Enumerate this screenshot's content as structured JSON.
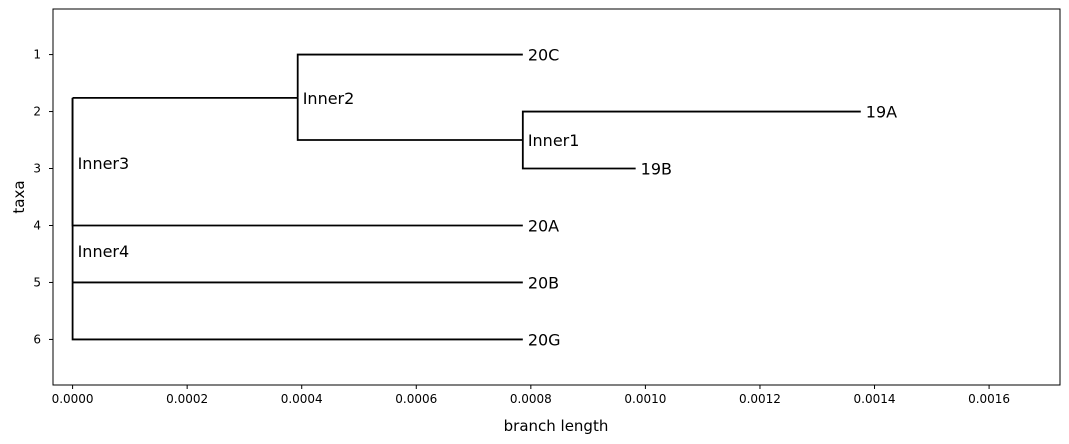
{
  "chart_data": {
    "type": "phylogenetic-tree",
    "title": "",
    "xlabel": "branch length",
    "ylabel": "taxa",
    "xlim": [
      -3.42e-05,
      0.0017238
    ],
    "ylim": [
      6.8,
      0.2
    ],
    "grid": false,
    "x_ticks": [
      {
        "value": 0.0,
        "label": "0.0000"
      },
      {
        "value": 0.0002,
        "label": "0.0002"
      },
      {
        "value": 0.0004,
        "label": "0.0004"
      },
      {
        "value": 0.0006,
        "label": "0.0006"
      },
      {
        "value": 0.0008,
        "label": "0.0008"
      },
      {
        "value": 0.001,
        "label": "0.0010"
      },
      {
        "value": 0.0012,
        "label": "0.0012"
      },
      {
        "value": 0.0014,
        "label": "0.0014"
      },
      {
        "value": 0.0016,
        "label": "0.0016"
      }
    ],
    "y_ticks": [
      {
        "value": 1,
        "label": "1"
      },
      {
        "value": 2,
        "label": "2"
      },
      {
        "value": 3,
        "label": "3"
      },
      {
        "value": 4,
        "label": "4"
      },
      {
        "value": 5,
        "label": "5"
      },
      {
        "value": 6,
        "label": "6"
      }
    ],
    "nodes": [
      {
        "id": "root",
        "x": 0.0,
        "y": 3.78,
        "label": ""
      },
      {
        "id": "Inner3",
        "x": 0.0,
        "y": 1.76,
        "label": "Inner3"
      },
      {
        "id": "Inner4",
        "x": 0.0,
        "y": 5.0,
        "label": "Inner4"
      },
      {
        "id": "Inner2",
        "x": 0.000393,
        "y": 1.76,
        "label": "Inner2"
      },
      {
        "id": "Inner1",
        "x": 0.000786,
        "y": 2.5,
        "label": "Inner1"
      },
      {
        "id": "20C",
        "x": 0.000786,
        "y": 1,
        "label": "20C"
      },
      {
        "id": "19A",
        "x": 0.001376,
        "y": 2,
        "label": "19A"
      },
      {
        "id": "19B",
        "x": 0.000983,
        "y": 3,
        "label": "19B"
      },
      {
        "id": "20A",
        "x": 0.000786,
        "y": 4,
        "label": "20A"
      },
      {
        "id": "20B",
        "x": 0.000786,
        "y": 5,
        "label": "20B"
      },
      {
        "id": "20G",
        "x": 0.000786,
        "y": 6,
        "label": "20G"
      }
    ],
    "edges": [
      [
        "root",
        "Inner3"
      ],
      [
        "root",
        "Inner4"
      ],
      [
        "Inner3",
        "Inner2"
      ],
      [
        "Inner3",
        "20A"
      ],
      [
        "Inner4",
        "20B"
      ],
      [
        "Inner4",
        "20G"
      ],
      [
        "Inner2",
        "20C"
      ],
      [
        "Inner2",
        "Inner1"
      ],
      [
        "Inner1",
        "19A"
      ],
      [
        "Inner1",
        "19B"
      ]
    ],
    "label_positions": {
      "Inner3": {
        "x": 0.0,
        "y": 2.9
      },
      "Inner4": {
        "x": 0.0,
        "y": 4.45
      }
    }
  }
}
